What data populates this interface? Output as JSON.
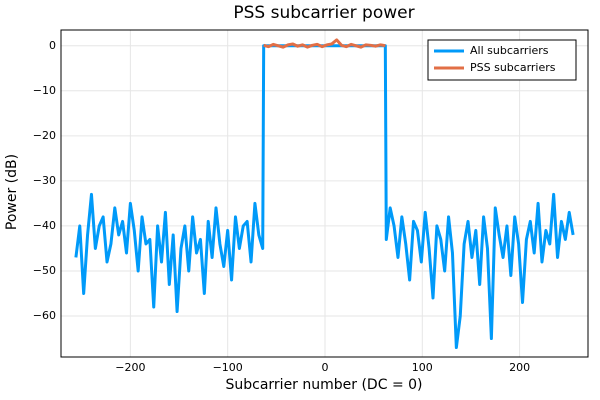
{
  "chart_data": {
    "type": "line",
    "title": "PSS subcarrier power",
    "x_label": "Subcarrier number (DC = 0)",
    "y_label": "Power (dB)",
    "xlim": [
      -271.3,
      270.3
    ],
    "ylim": [
      -69.1,
      3.5
    ],
    "xticks": [
      {
        "value": -200,
        "label": "−200"
      },
      {
        "value": -100,
        "label": "−100"
      },
      0,
      100,
      200
    ],
    "yticks": [
      0,
      {
        "value": -10,
        "label": "−10"
      },
      {
        "value": -20,
        "label": "−20"
      },
      {
        "value": -30,
        "label": "−30"
      },
      {
        "value": -40,
        "label": "−40"
      },
      {
        "value": -50,
        "label": "−50"
      },
      {
        "value": -60,
        "label": "−60"
      }
    ],
    "grid": true,
    "legend": "top-right",
    "series": [
      {
        "name": "All subcarriers",
        "color": "#009af9",
        "x": [
          -256,
          -252,
          -248,
          -244,
          -240,
          -236,
          -232,
          -228,
          -224,
          -220,
          -216,
          -212,
          -208,
          -204,
          -200,
          -196,
          -192,
          -188,
          -184,
          -180,
          -176,
          -172,
          -168,
          -164,
          -160,
          -156,
          -152,
          -148,
          -144,
          -140,
          -136,
          -132,
          -128,
          -124,
          -120,
          -116,
          -112,
          -108,
          -104,
          -100,
          -96,
          -92,
          -88,
          -84,
          -80,
          -76,
          -72,
          -68,
          -64,
          -63,
          62,
          63,
          67,
          71,
          75,
          79,
          83,
          87,
          91,
          95,
          99,
          103,
          107,
          111,
          115,
          119,
          123,
          127,
          131,
          135,
          139,
          143,
          147,
          151,
          155,
          159,
          163,
          167,
          171,
          175,
          179,
          183,
          187,
          191,
          195,
          199,
          203,
          207,
          211,
          215,
          219,
          223,
          227,
          231,
          235,
          239,
          243,
          247,
          251,
          255
        ],
        "values": [
          -47,
          -40,
          -55,
          -42,
          -33,
          -45,
          -40,
          -38,
          -48,
          -44,
          -36,
          -42,
          -39,
          -46,
          -35,
          -41,
          -50,
          -38,
          -44,
          -43,
          -58,
          -40,
          -48,
          -37,
          -53,
          -42,
          -59,
          -45,
          -40,
          -50,
          -38,
          -46,
          -43,
          -55,
          -39,
          -47,
          -36,
          -44,
          -49,
          -41,
          -52,
          -38,
          -45,
          -40,
          -39,
          -48,
          -35,
          -42,
          -45,
          0,
          0,
          -43,
          -36,
          -40,
          -47,
          -38,
          -44,
          -52,
          -39,
          -41,
          -48,
          -37,
          -45,
          -56,
          -40,
          -43,
          -50,
          -38,
          -46,
          -67,
          -60,
          -44,
          -39,
          -47,
          -41,
          -53,
          -38,
          -45,
          -65,
          -36,
          -42,
          -47,
          -40,
          -51,
          -38,
          -44,
          -57,
          -43,
          -39,
          -46,
          -35,
          -48,
          -41,
          -44,
          -33,
          -47,
          -39,
          -43,
          -37,
          -42
        ]
      },
      {
        "name": "PSS subcarriers",
        "color": "#e26f46",
        "x": [
          -63,
          -58,
          -53,
          -48,
          -43,
          -38,
          -33,
          -28,
          -23,
          -18,
          -13,
          -8,
          -3,
          2,
          7,
          12,
          17,
          22,
          27,
          32,
          37,
          42,
          47,
          52,
          57,
          62
        ],
        "values": [
          0.1,
          -0.2,
          0.3,
          0,
          -0.3,
          0.2,
          0.4,
          -0.1,
          0.2,
          -0.3,
          0.1,
          0.3,
          -0.2,
          0.2,
          0.4,
          1.3,
          0.1,
          -0.2,
          0.3,
          0,
          -0.3,
          0.2,
          0.1,
          -0.1,
          0.2,
          0
        ]
      }
    ]
  }
}
